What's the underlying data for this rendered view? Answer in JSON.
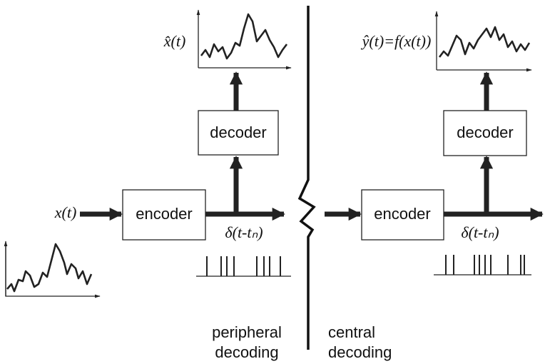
{
  "peripheral": {
    "output_label": "x̂(t)",
    "decoder": "decoder",
    "encoder": "encoder",
    "input_label": "x(t)",
    "spike_label": "δ(t-tₙ)",
    "caption": [
      "peripheral",
      "decoding"
    ]
  },
  "central": {
    "output_label": "ŷ(t)=f(x(t))",
    "decoder": "decoder",
    "encoder": "encoder",
    "spike_label": "δ(t-tₙ)",
    "caption": [
      "central",
      "decoding"
    ]
  }
}
